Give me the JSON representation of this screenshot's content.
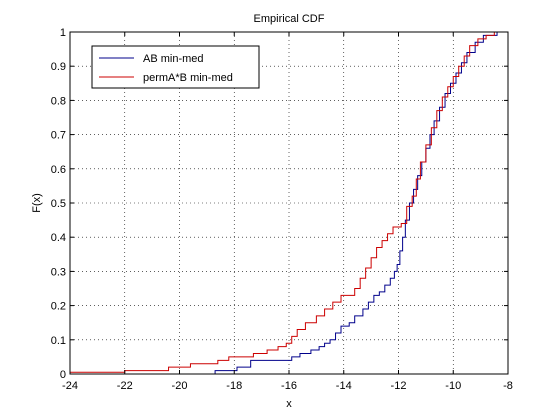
{
  "chart_data": {
    "type": "line",
    "title": "Empirical CDF",
    "xlabel": "x",
    "ylabel": "F(x)",
    "xlim": [
      -24,
      -8
    ],
    "ylim": [
      0,
      1
    ],
    "xticks": [
      -24,
      -22,
      -20,
      -18,
      -16,
      -14,
      -12,
      -10,
      -8
    ],
    "yticks": [
      0,
      0.1,
      0.2,
      0.3,
      0.4,
      0.5,
      0.6,
      0.7,
      0.8,
      0.9,
      1
    ],
    "xtick_labels": [
      "-24",
      "-22",
      "-20",
      "-18",
      "-16",
      "-14",
      "-12",
      "-10",
      "-8"
    ],
    "ytick_labels": [
      "0",
      "0.1",
      "0.2",
      "0.3",
      "0.4",
      "0.5",
      "0.6",
      "0.7",
      "0.8",
      "0.9",
      "1"
    ],
    "grid": true,
    "legend_position": "top-left",
    "step": true,
    "series": [
      {
        "name": "AB min-med",
        "color": "#00008B",
        "points": [
          [
            -18.7,
            0
          ],
          [
            -18.7,
            0.01
          ],
          [
            -17.9,
            0.01
          ],
          [
            -17.9,
            0.02
          ],
          [
            -17.4,
            0.02
          ],
          [
            -17.4,
            0.04
          ],
          [
            -15.9,
            0.04
          ],
          [
            -15.9,
            0.05
          ],
          [
            -15.6,
            0.05
          ],
          [
            -15.6,
            0.06
          ],
          [
            -15.2,
            0.06
          ],
          [
            -15.2,
            0.07
          ],
          [
            -14.9,
            0.07
          ],
          [
            -14.9,
            0.08
          ],
          [
            -14.7,
            0.08
          ],
          [
            -14.7,
            0.09
          ],
          [
            -14.5,
            0.09
          ],
          [
            -14.5,
            0.1
          ],
          [
            -14.3,
            0.1
          ],
          [
            -14.3,
            0.12
          ],
          [
            -14.1,
            0.12
          ],
          [
            -14.1,
            0.14
          ],
          [
            -13.8,
            0.14
          ],
          [
            -13.8,
            0.15
          ],
          [
            -13.6,
            0.15
          ],
          [
            -13.6,
            0.17
          ],
          [
            -13.3,
            0.17
          ],
          [
            -13.3,
            0.19
          ],
          [
            -13.1,
            0.19
          ],
          [
            -13.1,
            0.21
          ],
          [
            -12.9,
            0.21
          ],
          [
            -12.9,
            0.23
          ],
          [
            -12.7,
            0.23
          ],
          [
            -12.7,
            0.24
          ],
          [
            -12.5,
            0.24
          ],
          [
            -12.5,
            0.26
          ],
          [
            -12.3,
            0.26
          ],
          [
            -12.3,
            0.28
          ],
          [
            -12.15,
            0.28
          ],
          [
            -12.15,
            0.3
          ],
          [
            -12.05,
            0.3
          ],
          [
            -12.05,
            0.32
          ],
          [
            -11.95,
            0.32
          ],
          [
            -11.95,
            0.36
          ],
          [
            -11.85,
            0.36
          ],
          [
            -11.85,
            0.4
          ],
          [
            -11.75,
            0.4
          ],
          [
            -11.75,
            0.45
          ],
          [
            -11.6,
            0.45
          ],
          [
            -11.6,
            0.5
          ],
          [
            -11.45,
            0.5
          ],
          [
            -11.45,
            0.54
          ],
          [
            -11.3,
            0.54
          ],
          [
            -11.3,
            0.58
          ],
          [
            -11.15,
            0.58
          ],
          [
            -11.15,
            0.62
          ],
          [
            -11.0,
            0.62
          ],
          [
            -11.0,
            0.66
          ],
          [
            -10.85,
            0.66
          ],
          [
            -10.85,
            0.7
          ],
          [
            -10.7,
            0.7
          ],
          [
            -10.7,
            0.74
          ],
          [
            -10.5,
            0.74
          ],
          [
            -10.5,
            0.78
          ],
          [
            -10.3,
            0.78
          ],
          [
            -10.3,
            0.82
          ],
          [
            -10.1,
            0.82
          ],
          [
            -10.1,
            0.85
          ],
          [
            -9.9,
            0.85
          ],
          [
            -9.9,
            0.88
          ],
          [
            -9.7,
            0.88
          ],
          [
            -9.7,
            0.91
          ],
          [
            -9.5,
            0.91
          ],
          [
            -9.5,
            0.94
          ],
          [
            -9.2,
            0.94
          ],
          [
            -9.2,
            0.97
          ],
          [
            -8.9,
            0.97
          ],
          [
            -8.9,
            0.99
          ],
          [
            -8.4,
            0.99
          ],
          [
            -8.4,
            1.0
          ],
          [
            -8,
            1.0
          ]
        ]
      },
      {
        "name": "permA*B min-med",
        "color": "#CC0000",
        "points": [
          [
            -24,
            0
          ],
          [
            -24,
            0.005
          ],
          [
            -22,
            0.005
          ],
          [
            -22,
            0.01
          ],
          [
            -20.4,
            0.01
          ],
          [
            -20.4,
            0.02
          ],
          [
            -19.6,
            0.02
          ],
          [
            -19.6,
            0.03
          ],
          [
            -18.6,
            0.03
          ],
          [
            -18.6,
            0.04
          ],
          [
            -18.2,
            0.04
          ],
          [
            -18.2,
            0.05
          ],
          [
            -17.3,
            0.05
          ],
          [
            -17.3,
            0.06
          ],
          [
            -16.8,
            0.06
          ],
          [
            -16.8,
            0.07
          ],
          [
            -16.4,
            0.07
          ],
          [
            -16.4,
            0.08
          ],
          [
            -16.1,
            0.08
          ],
          [
            -16.1,
            0.09
          ],
          [
            -15.9,
            0.09
          ],
          [
            -15.9,
            0.11
          ],
          [
            -15.7,
            0.11
          ],
          [
            -15.7,
            0.13
          ],
          [
            -15.4,
            0.13
          ],
          [
            -15.4,
            0.15
          ],
          [
            -15.0,
            0.15
          ],
          [
            -15.0,
            0.17
          ],
          [
            -14.7,
            0.17
          ],
          [
            -14.7,
            0.19
          ],
          [
            -14.4,
            0.19
          ],
          [
            -14.4,
            0.21
          ],
          [
            -14.1,
            0.21
          ],
          [
            -14.1,
            0.23
          ],
          [
            -13.6,
            0.23
          ],
          [
            -13.6,
            0.25
          ],
          [
            -13.4,
            0.25
          ],
          [
            -13.4,
            0.28
          ],
          [
            -13.2,
            0.28
          ],
          [
            -13.2,
            0.31
          ],
          [
            -13.0,
            0.31
          ],
          [
            -13.0,
            0.34
          ],
          [
            -12.8,
            0.34
          ],
          [
            -12.8,
            0.37
          ],
          [
            -12.6,
            0.37
          ],
          [
            -12.6,
            0.39
          ],
          [
            -12.4,
            0.39
          ],
          [
            -12.4,
            0.41
          ],
          [
            -12.2,
            0.41
          ],
          [
            -12.2,
            0.43
          ],
          [
            -11.9,
            0.43
          ],
          [
            -11.9,
            0.44
          ],
          [
            -11.7,
            0.44
          ],
          [
            -11.7,
            0.49
          ],
          [
            -11.5,
            0.49
          ],
          [
            -11.5,
            0.52
          ],
          [
            -11.35,
            0.52
          ],
          [
            -11.35,
            0.57
          ],
          [
            -11.2,
            0.57
          ],
          [
            -11.2,
            0.62
          ],
          [
            -11.0,
            0.62
          ],
          [
            -11.0,
            0.67
          ],
          [
            -10.8,
            0.67
          ],
          [
            -10.8,
            0.72
          ],
          [
            -10.6,
            0.72
          ],
          [
            -10.6,
            0.77
          ],
          [
            -10.4,
            0.77
          ],
          [
            -10.4,
            0.81
          ],
          [
            -10.2,
            0.81
          ],
          [
            -10.2,
            0.84
          ],
          [
            -10.0,
            0.84
          ],
          [
            -10.0,
            0.87
          ],
          [
            -9.8,
            0.87
          ],
          [
            -9.8,
            0.9
          ],
          [
            -9.6,
            0.9
          ],
          [
            -9.6,
            0.93
          ],
          [
            -9.4,
            0.93
          ],
          [
            -9.4,
            0.96
          ],
          [
            -9.1,
            0.96
          ],
          [
            -9.1,
            0.98
          ],
          [
            -8.8,
            0.98
          ],
          [
            -8.8,
            0.99
          ],
          [
            -8.5,
            0.99
          ],
          [
            -8.5,
            1.0
          ],
          [
            -8,
            1.0
          ]
        ]
      }
    ]
  }
}
